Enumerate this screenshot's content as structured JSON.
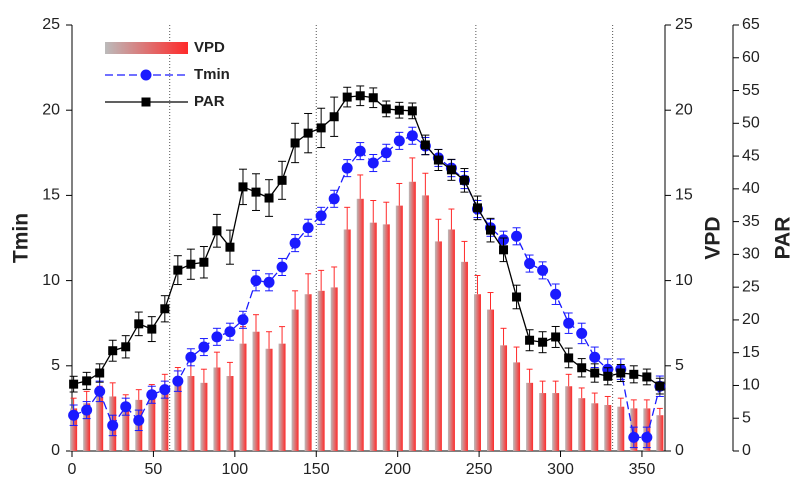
{
  "chart_data": {
    "type": "combo",
    "y_label": "Tmin",
    "y2_label": "VPD",
    "y3_label": "PAR",
    "xlim": [
      0,
      366
    ],
    "xticks": [
      0,
      50,
      100,
      150,
      200,
      250,
      300,
      350
    ],
    "ylim": [
      0,
      25
    ],
    "yticks": [
      0,
      5,
      10,
      15,
      20,
      25
    ],
    "y2lim": [
      0,
      25
    ],
    "y2ticks": [
      0,
      5,
      10,
      15,
      20,
      25
    ],
    "y3lim": [
      0,
      65
    ],
    "y3ticks": [
      0,
      5,
      10,
      15,
      20,
      25,
      30,
      35,
      40,
      45,
      50,
      55,
      60,
      65
    ],
    "vlines": [
      60,
      150,
      248,
      332
    ],
    "x": [
      1,
      9,
      17,
      25,
      33,
      41,
      49,
      57,
      65,
      73,
      81,
      89,
      97,
      105,
      113,
      121,
      129,
      137,
      145,
      153,
      161,
      169,
      177,
      185,
      193,
      201,
      209,
      217,
      225,
      233,
      241,
      249,
      257,
      265,
      273,
      281,
      289,
      297,
      305,
      313,
      321,
      329,
      337,
      345,
      353,
      361
    ],
    "series": [
      {
        "name": "VPD",
        "type": "bar",
        "axis": "y2",
        "color": "#ff2a2a",
        "values": [
          2.5,
          2.8,
          3.2,
          3.2,
          2.6,
          3.0,
          3.2,
          3.7,
          4.1,
          4.4,
          4.0,
          4.9,
          4.4,
          6.3,
          7.0,
          6.0,
          6.3,
          8.3,
          9.2,
          9.4,
          9.6,
          13.0,
          14.8,
          13.4,
          13.3,
          14.4,
          15.8,
          15.0,
          12.3,
          13.0,
          11.1,
          9.2,
          8.3,
          6.2,
          5.2,
          4.0,
          3.4,
          3.4,
          3.8,
          3.1,
          2.8,
          2.7,
          2.6,
          2.5,
          2.5,
          2.1
        ],
        "errors": [
          0.6,
          0.7,
          0.6,
          0.8,
          0.7,
          0.6,
          0.7,
          0.8,
          0.8,
          0.9,
          0.8,
          0.9,
          0.8,
          1.0,
          1.0,
          1.0,
          1.0,
          1.1,
          1.2,
          1.2,
          1.2,
          1.3,
          1.4,
          1.3,
          1.3,
          1.3,
          1.4,
          1.3,
          1.3,
          1.2,
          1.2,
          1.1,
          1.0,
          1.0,
          0.9,
          0.8,
          0.7,
          0.7,
          0.7,
          0.6,
          0.6,
          0.5,
          0.5,
          0.5,
          0.5,
          0.4
        ]
      },
      {
        "name": "Tmin",
        "type": "line",
        "axis": "y",
        "color": "#1a1aff",
        "marker": "circle",
        "dashed": true,
        "values": [
          2.1,
          2.4,
          3.5,
          1.5,
          2.6,
          1.8,
          3.3,
          3.6,
          4.1,
          5.5,
          6.1,
          6.7,
          7.0,
          7.7,
          10.0,
          9.9,
          10.8,
          12.2,
          13.1,
          13.8,
          14.8,
          16.6,
          17.6,
          16.9,
          17.5,
          18.2,
          18.5,
          17.9,
          17.2,
          16.6,
          15.9,
          14.2,
          13.1,
          12.4,
          12.6,
          11.0,
          10.6,
          9.2,
          7.5,
          6.9,
          5.5,
          4.8,
          4.8,
          0.8,
          0.8,
          3.8
        ],
        "errors": [
          0.6,
          0.5,
          0.6,
          0.6,
          0.5,
          0.6,
          0.5,
          0.5,
          0.6,
          0.5,
          0.5,
          0.5,
          0.5,
          0.5,
          0.6,
          0.5,
          0.5,
          0.5,
          0.5,
          0.5,
          0.5,
          0.5,
          0.5,
          0.5,
          0.5,
          0.5,
          0.5,
          0.5,
          0.5,
          0.5,
          0.5,
          0.5,
          0.5,
          0.5,
          0.5,
          0.5,
          0.5,
          0.6,
          0.6,
          0.6,
          0.6,
          0.6,
          0.6,
          0.6,
          0.6,
          0.6
        ]
      },
      {
        "name": "PAR",
        "type": "line",
        "axis": "y3",
        "color": "#000000",
        "marker": "square",
        "dashed": false,
        "values": [
          10.2,
          10.7,
          11.9,
          15.3,
          15.9,
          19.4,
          18.6,
          21.7,
          27.6,
          28.5,
          28.8,
          33.6,
          31.1,
          40.3,
          39.5,
          38.6,
          41.3,
          47.0,
          48.5,
          49.3,
          51.0,
          54.0,
          54.2,
          53.9,
          52.2,
          52.0,
          51.9,
          46.7,
          44.4,
          42.9,
          41.3,
          37.1,
          33.7,
          30.7,
          23.5,
          16.9,
          16.6,
          17.4,
          14.2,
          12.7,
          11.9,
          11.4,
          11.9,
          11.7,
          11.3,
          9.9
        ],
        "errors": [
          1.2,
          1.3,
          1.4,
          1.6,
          1.7,
          1.8,
          1.9,
          2.0,
          2.2,
          2.3,
          2.4,
          2.5,
          2.6,
          2.7,
          2.8,
          2.8,
          2.9,
          3.0,
          3.0,
          3.0,
          3.0,
          1.5,
          1.5,
          1.5,
          1.2,
          1.2,
          1.2,
          1.5,
          1.6,
          1.6,
          1.8,
          1.8,
          1.8,
          1.8,
          1.8,
          1.6,
          1.6,
          1.6,
          1.5,
          1.4,
          1.4,
          1.3,
          1.3,
          1.3,
          1.2,
          1.2
        ]
      }
    ]
  }
}
